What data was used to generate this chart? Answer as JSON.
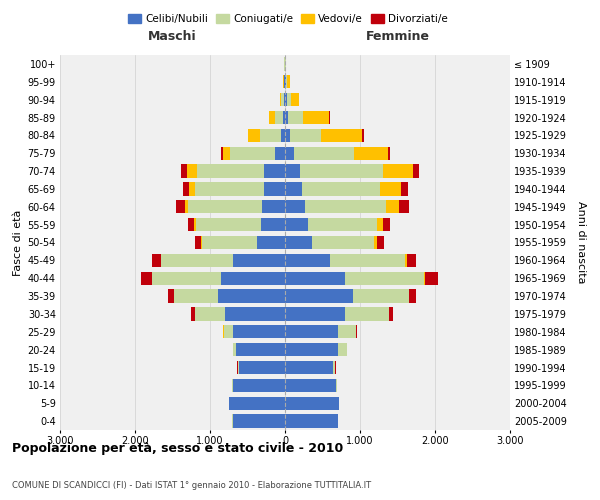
{
  "age_groups": [
    "0-4",
    "5-9",
    "10-14",
    "15-19",
    "20-24",
    "25-29",
    "30-34",
    "35-39",
    "40-44",
    "45-49",
    "50-54",
    "55-59",
    "60-64",
    "65-69",
    "70-74",
    "75-79",
    "80-84",
    "85-89",
    "90-94",
    "95-99",
    "100+"
  ],
  "birth_years": [
    "2005-2009",
    "2000-2004",
    "1995-1999",
    "1990-1994",
    "1985-1989",
    "1980-1984",
    "1975-1979",
    "1970-1974",
    "1965-1969",
    "1960-1964",
    "1955-1959",
    "1950-1954",
    "1945-1949",
    "1940-1944",
    "1935-1939",
    "1930-1934",
    "1925-1929",
    "1920-1924",
    "1915-1919",
    "1910-1914",
    "≤ 1909"
  ],
  "male": {
    "celibi": [
      700,
      750,
      700,
      620,
      650,
      700,
      800,
      900,
      850,
      700,
      380,
      320,
      310,
      280,
      280,
      130,
      60,
      30,
      20,
      10,
      5
    ],
    "coniugati": [
      2,
      3,
      5,
      10,
      40,
      120,
      400,
      580,
      920,
      950,
      730,
      870,
      980,
      920,
      900,
      600,
      270,
      100,
      30,
      10,
      2
    ],
    "vedovi": [
      0,
      0,
      0,
      1,
      2,
      2,
      3,
      5,
      5,
      5,
      10,
      20,
      40,
      80,
      130,
      100,
      160,
      80,
      20,
      5,
      0
    ],
    "divorziati": [
      0,
      0,
      0,
      3,
      5,
      10,
      50,
      80,
      150,
      120,
      80,
      90,
      120,
      80,
      80,
      30,
      10,
      5,
      0,
      0,
      0
    ]
  },
  "female": {
    "nubili": [
      700,
      720,
      680,
      640,
      700,
      700,
      800,
      900,
      800,
      600,
      360,
      300,
      260,
      220,
      200,
      120,
      60,
      40,
      30,
      15,
      5
    ],
    "coniugate": [
      3,
      5,
      10,
      30,
      120,
      250,
      580,
      750,
      1050,
      1000,
      820,
      920,
      1080,
      1050,
      1100,
      800,
      420,
      200,
      50,
      15,
      2
    ],
    "vedove": [
      0,
      0,
      0,
      1,
      2,
      3,
      5,
      5,
      10,
      20,
      50,
      80,
      180,
      280,
      400,
      450,
      550,
      350,
      100,
      30,
      5
    ],
    "divorziate": [
      0,
      0,
      0,
      3,
      5,
      10,
      50,
      90,
      180,
      130,
      90,
      100,
      130,
      90,
      90,
      30,
      20,
      10,
      0,
      0,
      0
    ]
  },
  "colors": {
    "celibi": "#4472c4",
    "coniugati": "#c5d9a0",
    "vedovi": "#ffc000",
    "divorziati": "#c0000b"
  },
  "xlim": 3000,
  "title": "Popolazione per età, sesso e stato civile - 2010",
  "subtitle": "COMUNE DI SCANDICCI (FI) - Dati ISTAT 1° gennaio 2010 - Elaborazione TUTTITALIA.IT",
  "ylabel_left": "Fasce di età",
  "ylabel_right": "Anni di nascita",
  "xlabel_maschi": "Maschi",
  "xlabel_femmine": "Femmine",
  "bg_color": "#f0f0f0",
  "grid_color": "#d0d0d0"
}
